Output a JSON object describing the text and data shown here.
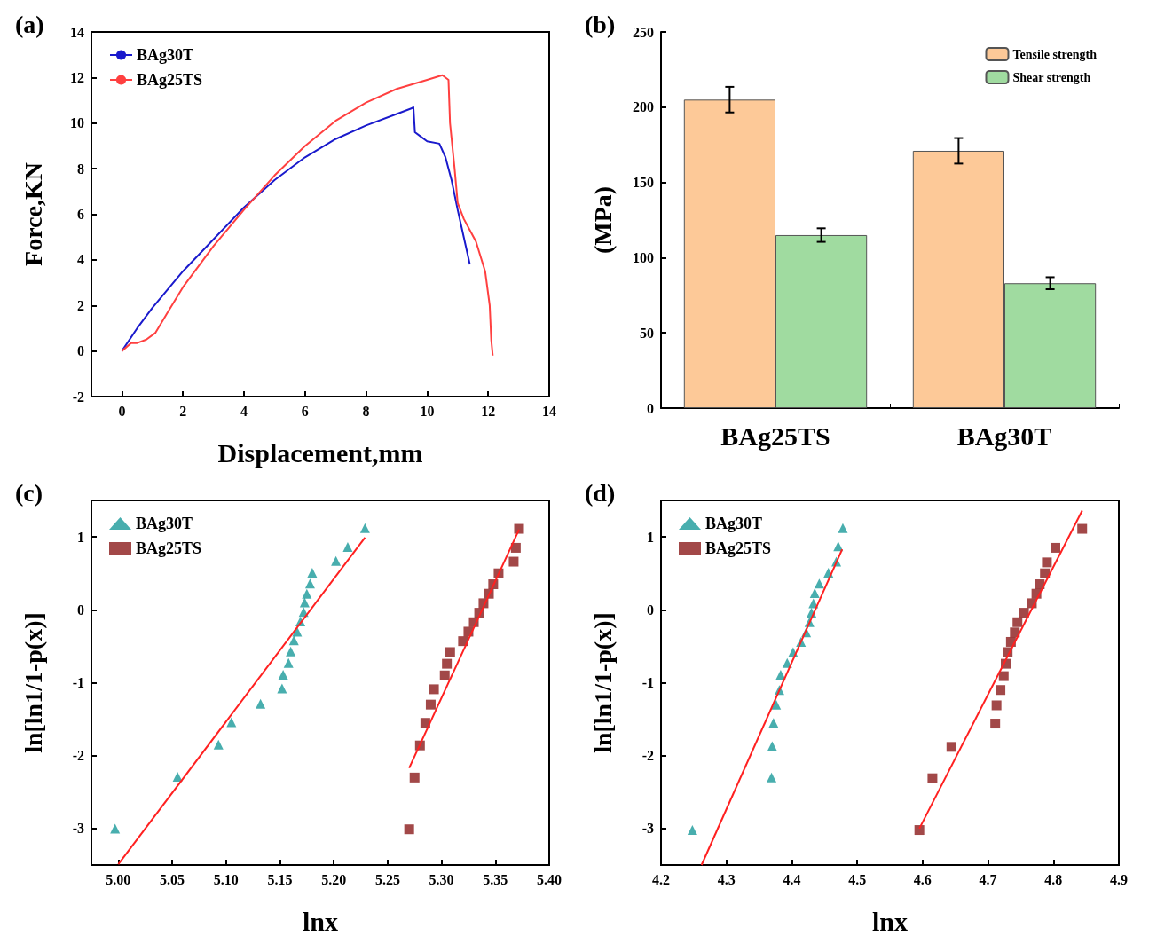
{
  "chart_data": [
    {
      "type": "line",
      "title": "(a)",
      "xlabel": "Displacement,mm",
      "ylabel": "Force,KN",
      "xlim": [
        -1,
        14
      ],
      "ylim": [
        -2,
        14
      ],
      "xticks": [
        0,
        2,
        4,
        6,
        8,
        10,
        12,
        14
      ],
      "yticks": [
        -2,
        0,
        2,
        4,
        6,
        8,
        10,
        12,
        14
      ],
      "legend": "top left",
      "series": [
        {
          "name": "BAg30T",
          "color": "#1a1acc",
          "x": [
            0,
            0.5,
            1,
            2,
            3,
            4,
            5,
            6,
            7,
            8,
            9,
            9.5,
            9.55,
            9.6,
            9.8,
            10,
            10.4,
            10.6,
            10.8,
            11,
            11.2,
            11.4
          ],
          "values": [
            0,
            1,
            1.9,
            3.5,
            4.9,
            6.3,
            7.5,
            8.5,
            9.3,
            9.9,
            10.4,
            10.65,
            10.7,
            9.6,
            9.4,
            9.2,
            9.1,
            8.5,
            7.5,
            6.2,
            5,
            3.8
          ]
        },
        {
          "name": "BAg25TS",
          "color": "#ff4040",
          "x": [
            0,
            0.3,
            0.5,
            0.8,
            1.1,
            1.5,
            2,
            3,
            4,
            5,
            6,
            7,
            8,
            9,
            10,
            10.5,
            10.7,
            10.75,
            10.9,
            11,
            11.2,
            11.6,
            11.9,
            12.05,
            12.1,
            12.15
          ],
          "values": [
            0,
            0.35,
            0.35,
            0.5,
            0.8,
            1.7,
            2.8,
            4.6,
            6.2,
            7.7,
            9,
            10.1,
            10.9,
            11.5,
            11.9,
            12.1,
            11.9,
            10,
            8,
            6.5,
            5.8,
            4.8,
            3.5,
            2,
            0.5,
            -0.2
          ]
        }
      ]
    },
    {
      "type": "bar",
      "title": "(b)",
      "ylabel": "(MPa)",
      "categories": [
        "BAg25TS",
        "BAg30T"
      ],
      "ylim": [
        0,
        250
      ],
      "yticks": [
        0,
        50,
        100,
        150,
        200,
        250
      ],
      "legend": "top right",
      "series": [
        {
          "name": "Tensile strength",
          "color": "#fdc998",
          "values": [
            205,
            171
          ],
          "errors": [
            8.5,
            8.5
          ]
        },
        {
          "name": "Shear strength",
          "color": "#a0dba0",
          "values": [
            115,
            83
          ],
          "errors": [
            4.5,
            4
          ]
        }
      ]
    },
    {
      "type": "scatter",
      "title": "(c)",
      "xlabel": "lnx",
      "ylabel": "ln[ln1/1-p(x)]",
      "xlim": [
        4.975,
        5.4
      ],
      "ylim": [
        -3.5,
        1.5
      ],
      "xticks": [
        {
          "value": 5,
          "label": "5.00"
        },
        5.05,
        {
          "value": 5.1,
          "label": "5.10"
        },
        5.15,
        {
          "value": 5.2,
          "label": "5.20"
        },
        5.25,
        {
          "value": 5.3,
          "label": "5.30"
        },
        5.35,
        {
          "value": 5.4,
          "label": "5.40"
        }
      ],
      "yticks": [
        -3,
        -2,
        -1,
        0,
        1
      ],
      "legend": "top left",
      "series": [
        {
          "name": "BAg30T",
          "color": "#1a9a9a",
          "marker": "triangle",
          "x": [
            4.997,
            5.055,
            5.093,
            5.105,
            5.132,
            5.152,
            5.153,
            5.158,
            5.16,
            5.163,
            5.166,
            5.169,
            5.172,
            5.173,
            5.175,
            5.178,
            5.18,
            5.202,
            5.213,
            5.229
          ],
          "values": [
            -3,
            -2.29,
            -1.85,
            -1.54,
            -1.29,
            -1.08,
            -0.89,
            -0.73,
            -0.57,
            -0.42,
            -0.3,
            -0.16,
            -0.03,
            0.1,
            0.22,
            0.36,
            0.51,
            0.67,
            0.86,
            1.12
          ]
        },
        {
          "name": "BAg25TS",
          "color": "#8b1a1a",
          "marker": "square",
          "x": [
            5.27,
            5.275,
            5.28,
            5.285,
            5.29,
            5.293,
            5.303,
            5.305,
            5.308,
            5.32,
            5.325,
            5.33,
            5.335,
            5.339,
            5.344,
            5.348,
            5.353,
            5.367,
            5.369,
            5.372
          ],
          "values": [
            -3.01,
            -2.3,
            -1.86,
            -1.55,
            -1.3,
            -1.09,
            -0.9,
            -0.74,
            -0.58,
            -0.43,
            -0.3,
            -0.17,
            -0.04,
            0.09,
            0.22,
            0.35,
            0.5,
            0.66,
            0.85,
            1.11
          ]
        },
        {
          "type": "line",
          "color": "#ff2020",
          "x": [
            5,
            5.229
          ],
          "values": [
            -3.49,
            0.99
          ]
        },
        {
          "type": "line",
          "color": "#ff2020",
          "x": [
            5.27,
            5.372
          ],
          "values": [
            -2.17,
            1.1
          ]
        }
      ]
    },
    {
      "type": "scatter",
      "title": "(d)",
      "xlabel": "lnx",
      "ylabel": "ln[ln1/1-p(x)]",
      "xlim": [
        4.2,
        4.9
      ],
      "ylim": [
        -3.5,
        1.5
      ],
      "xticks": [
        4.2,
        4.3,
        4.4,
        4.5,
        4.6,
        4.7,
        4.8,
        4.9
      ],
      "yticks": [
        -3,
        -2,
        -1,
        0,
        1
      ],
      "legend": "top left",
      "series": [
        {
          "name": "BAg30T",
          "color": "#1a9a9a",
          "marker": "triangle",
          "x": [
            4.248,
            4.369,
            4.37,
            4.372,
            4.376,
            4.381,
            4.383,
            4.393,
            4.402,
            4.414,
            4.422,
            4.427,
            4.43,
            4.433,
            4.435,
            4.442,
            4.456,
            4.468,
            4.471,
            4.478
          ],
          "values": [
            -3.02,
            -2.3,
            -1.87,
            -1.55,
            -1.3,
            -1.1,
            -0.89,
            -0.73,
            -0.58,
            -0.44,
            -0.31,
            -0.17,
            -0.04,
            0.09,
            0.23,
            0.36,
            0.51,
            0.66,
            0.87,
            1.12
          ]
        },
        {
          "name": "BAg25TS",
          "color": "#8b1a1a",
          "marker": "square",
          "x": [
            4.595,
            4.615,
            4.644,
            4.711,
            4.713,
            4.719,
            4.724,
            4.727,
            4.73,
            4.735,
            4.741,
            4.745,
            4.755,
            4.767,
            4.774,
            4.779,
            4.787,
            4.79,
            4.803,
            4.844
          ],
          "values": [
            -3.02,
            -2.31,
            -1.88,
            -1.56,
            -1.31,
            -1.1,
            -0.91,
            -0.74,
            -0.58,
            -0.44,
            -0.31,
            -0.17,
            -0.04,
            0.09,
            0.22,
            0.35,
            0.5,
            0.65,
            0.85,
            1.11
          ]
        },
        {
          "type": "line",
          "color": "#ff2020",
          "x": [
            4.262,
            4.477
          ],
          "values": [
            -3.5,
            0.83
          ]
        },
        {
          "type": "line",
          "color": "#ff2020",
          "x": [
            4.595,
            4.844
          ],
          "values": [
            -3,
            1.36
          ]
        }
      ]
    }
  ]
}
